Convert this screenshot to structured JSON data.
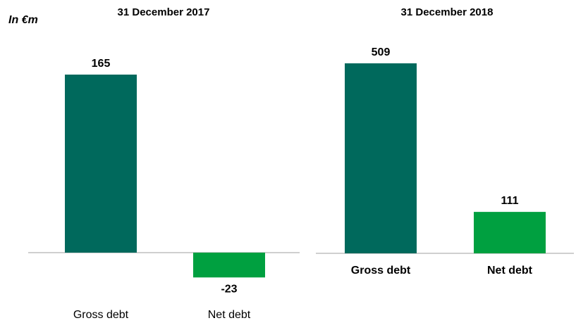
{
  "unit_label": "In €m",
  "chart_data": [
    {
      "type": "bar",
      "title": "31 December 2017",
      "categories": [
        "Gross debt",
        "Net debt"
      ],
      "values": [
        165,
        -23
      ],
      "value_labels": [
        "165",
        "-23"
      ],
      "colors": [
        "#00695C",
        "#00A040"
      ],
      "ylim": [
        -23,
        165
      ],
      "grid": false,
      "xlabel": "",
      "ylabel": ""
    },
    {
      "type": "bar",
      "title": "31 December 2018",
      "categories": [
        "Gross debt",
        "Net debt"
      ],
      "values": [
        509,
        111
      ],
      "value_labels": [
        "509",
        "111"
      ],
      "colors": [
        "#00695C",
        "#00A040"
      ],
      "ylim": [
        0,
        509
      ],
      "grid": false,
      "xlabel": "",
      "ylabel": ""
    }
  ]
}
